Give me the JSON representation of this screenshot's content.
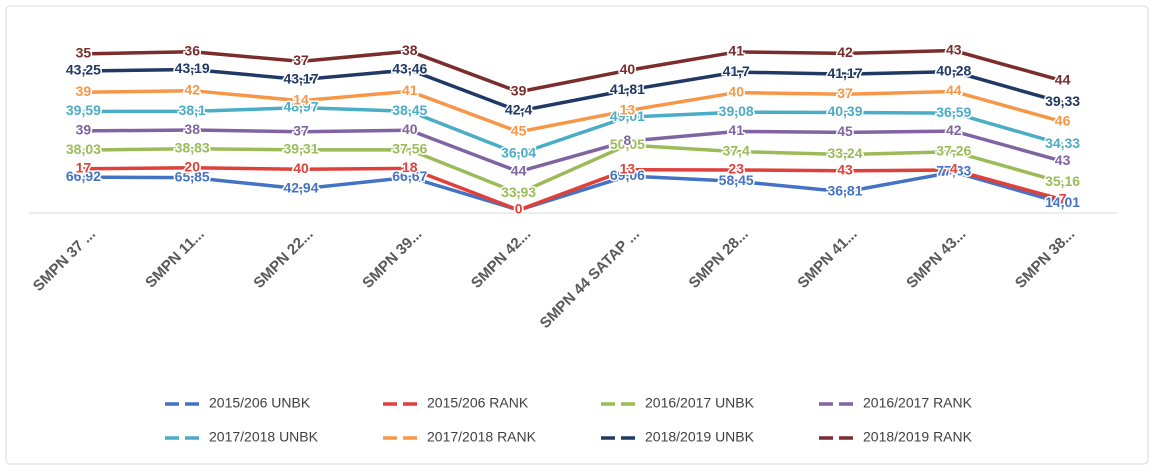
{
  "chart_data": {
    "type": "stacked_line",
    "categories": [
      "SMPN 37 ...",
      "SMPN 11...",
      "SMPN 22...",
      "SMPN 39...",
      "SMPN 42...",
      "SMPN 44 SATAP ...",
      "SMPN 28...",
      "SMPN 41...",
      "SMPN 43...",
      "SMPN 38..."
    ],
    "ylim": [
      0,
      350
    ],
    "series": [
      {
        "name": "2015/206 UNBK",
        "color": "#4472c4",
        "values": [
          66.92,
          65.85,
          42.94,
          66.67,
          0,
          69.06,
          58.45,
          36.81,
          77.33,
          14.01
        ],
        "value_labels": [
          "66,92",
          "65,85",
          "42,94",
          "66,67",
          "0",
          "69,06",
          "58,45",
          "36,81",
          "77,33",
          "14,01"
        ]
      },
      {
        "name": "2015/206 RANK",
        "color": "#e0403a",
        "values": [
          17,
          20,
          40,
          18,
          0,
          13,
          23,
          43,
          4,
          7
        ]
      },
      {
        "name": "2016/2017 UNBK",
        "color": "#9bbb59",
        "values": [
          38.03,
          38.83,
          39.31,
          37.56,
          33.93,
          50.05,
          37.4,
          33.24,
          37.26,
          35.16
        ],
        "value_labels": [
          "38,03",
          "38,83",
          "39,31",
          "37,56",
          "33,93",
          "50,05",
          "37,4",
          "33,24",
          "37,26",
          "35,16"
        ]
      },
      {
        "name": "2016/2017 RANK",
        "color": "#8064a2",
        "values": [
          39,
          38,
          37,
          40,
          44,
          8,
          41,
          45,
          42,
          43
        ]
      },
      {
        "name": "2017/2018 UNBK",
        "color": "#4bacc6",
        "values": [
          39.59,
          38.1,
          48.97,
          38.45,
          36.04,
          49.01,
          39.08,
          40.39,
          36.59,
          34.33
        ],
        "value_labels": [
          "39,59",
          "38,1",
          "48,97",
          "38,45",
          "36,04",
          "49,01",
          "39,08",
          "40,39",
          "36,59",
          "34,33"
        ]
      },
      {
        "name": "2017/2018 RANK",
        "color": "#f79646",
        "values": [
          39,
          42,
          14,
          41,
          45,
          13,
          40,
          37,
          44,
          46
        ]
      },
      {
        "name": "2018/2019 UNBK",
        "color": "#1f3864",
        "values": [
          43.25,
          43.19,
          43.17,
          43.46,
          42.4,
          41.81,
          41.7,
          41.17,
          40.28,
          39.33
        ],
        "value_labels": [
          "43,25",
          "43,19",
          "43,17",
          "43,46",
          "42,4",
          "41,81",
          "41,7",
          "41,17",
          "40,28",
          "39,33"
        ]
      },
      {
        "name": "2018/2019 RANK",
        "color": "#7b2c2c",
        "values": [
          35,
          36,
          37,
          38,
          39,
          40,
          41,
          42,
          43,
          44
        ]
      }
    ]
  }
}
